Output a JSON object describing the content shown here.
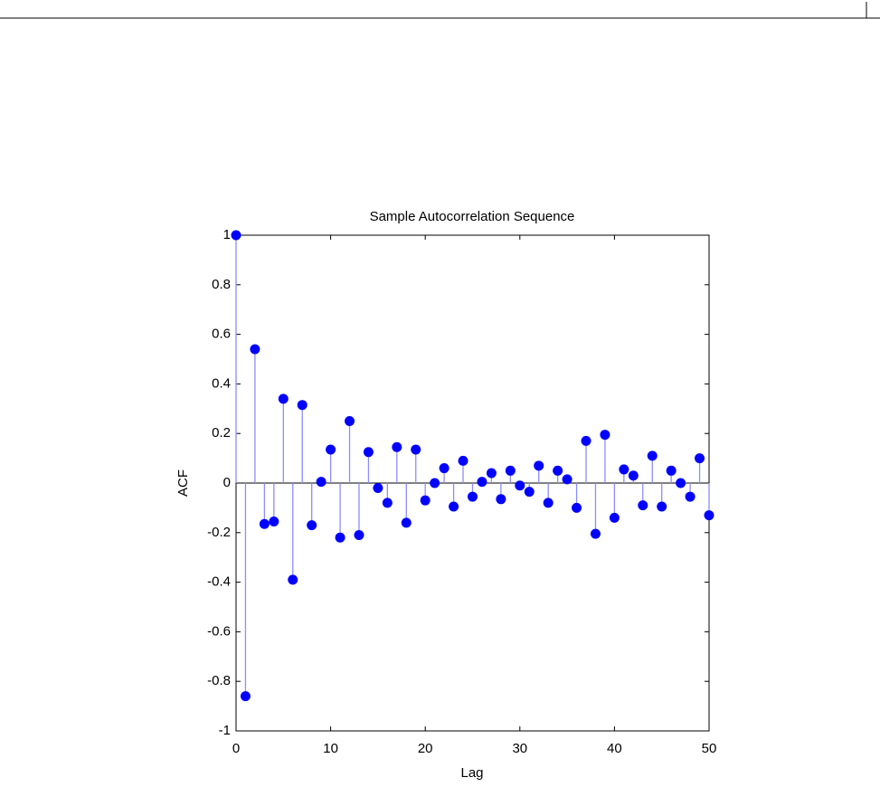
{
  "chart_data": {
    "type": "stem",
    "title": "Sample Autocorrelation Sequence",
    "x_label": "Lag",
    "y_label": "ACF",
    "x": [
      0,
      1,
      2,
      3,
      4,
      5,
      6,
      7,
      8,
      9,
      10,
      11,
      12,
      13,
      14,
      15,
      16,
      17,
      18,
      19,
      20,
      21,
      22,
      23,
      24,
      25,
      26,
      27,
      28,
      29,
      30,
      31,
      32,
      33,
      34,
      35,
      36,
      37,
      38,
      39,
      40,
      41,
      42,
      43,
      44,
      45,
      46,
      47,
      48,
      49,
      50
    ],
    "values": [
      1.0,
      -0.86,
      0.54,
      -0.165,
      -0.155,
      0.34,
      -0.39,
      0.315,
      -0.17,
      0.005,
      0.135,
      -0.22,
      0.25,
      -0.21,
      0.125,
      -0.02,
      -0.08,
      0.145,
      -0.16,
      0.135,
      -0.07,
      0.0,
      0.06,
      -0.095,
      0.09,
      -0.055,
      0.005,
      0.04,
      -0.065,
      0.05,
      -0.01,
      -0.035,
      0.07,
      -0.08,
      0.05,
      0.015,
      -0.1,
      0.17,
      -0.205,
      0.195,
      -0.14,
      0.055,
      0.03,
      -0.09,
      0.11,
      -0.095,
      0.05,
      0.0,
      -0.055,
      0.1,
      -0.13
    ],
    "color": "#0000ff",
    "stem_color": "#8c8cff",
    "xlim": [
      0,
      50
    ],
    "xticks": [
      0,
      10,
      20,
      30,
      40,
      50
    ],
    "ylim": [
      -1,
      1
    ],
    "yticks": [
      -1,
      -0.8,
      -0.6,
      -0.4,
      -0.2,
      0,
      0.2,
      0.4,
      0.6,
      0.8,
      1
    ]
  }
}
